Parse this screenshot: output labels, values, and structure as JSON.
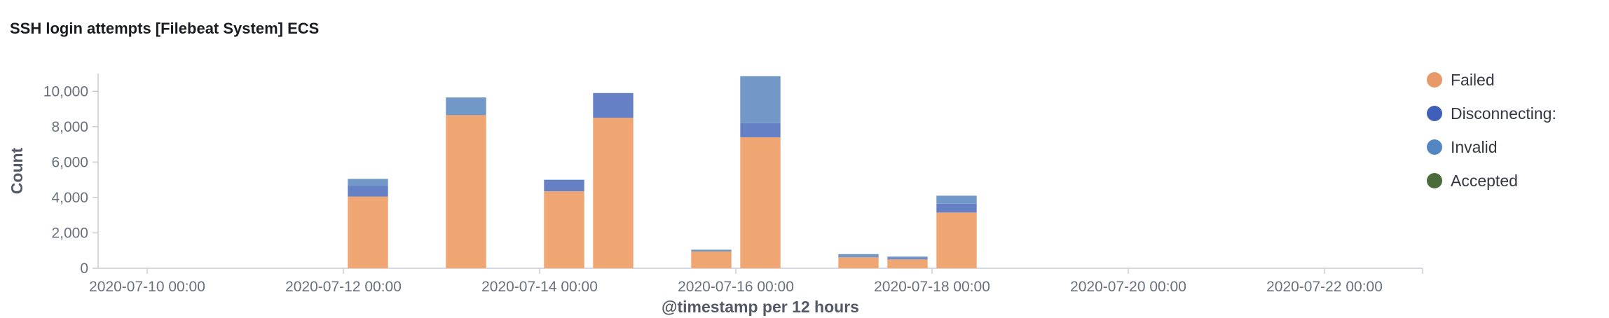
{
  "panel": {
    "title": "SSH login attempts [Filebeat System] ECS"
  },
  "chart_data": {
    "type": "bar",
    "stacked": true,
    "xlabel": "@timestamp per 12 hours",
    "ylabel": "Count",
    "ylim": [
      0,
      11000
    ],
    "yticks": [
      0,
      2000,
      4000,
      6000,
      8000,
      10000
    ],
    "ytick_labels": [
      "0",
      "2,000",
      "4,000",
      "6,000",
      "8,000",
      "10,000"
    ],
    "xlim": [
      "2020-07-09 12:00",
      "2020-07-23 00:00"
    ],
    "xticks": [
      "2020-07-10 00:00",
      "2020-07-12 00:00",
      "2020-07-14 00:00",
      "2020-07-16 00:00",
      "2020-07-18 00:00",
      "2020-07-20 00:00",
      "2020-07-22 00:00"
    ],
    "x": [
      "2020-07-12 00:00",
      "2020-07-13 00:00",
      "2020-07-14 00:00",
      "2020-07-14 12:00",
      "2020-07-15 12:00",
      "2020-07-16 00:00",
      "2020-07-17 00:00",
      "2020-07-17 12:00",
      "2020-07-18 00:00"
    ],
    "series": [
      {
        "name": "Failed",
        "color": "#f0a672",
        "values": [
          4050,
          8650,
          4350,
          8500,
          950,
          7400,
          620,
          500,
          3150
        ]
      },
      {
        "name": "Disconnecting:",
        "color": "#6680c6",
        "values": [
          600,
          0,
          650,
          1400,
          0,
          800,
          0,
          60,
          500
        ]
      },
      {
        "name": "Invalid",
        "color": "#7198c7",
        "values": [
          400,
          1000,
          0,
          0,
          100,
          2650,
          180,
          100,
          450
        ]
      },
      {
        "name": "Accepted",
        "color": "#4a6b3a",
        "values": [
          0,
          0,
          0,
          0,
          0,
          0,
          0,
          0,
          0
        ]
      }
    ],
    "legend_position": "right",
    "legend_colors": [
      "#e8996a",
      "#3f5fb8",
      "#5586c4",
      "#4a6b3a"
    ],
    "grid": false
  }
}
